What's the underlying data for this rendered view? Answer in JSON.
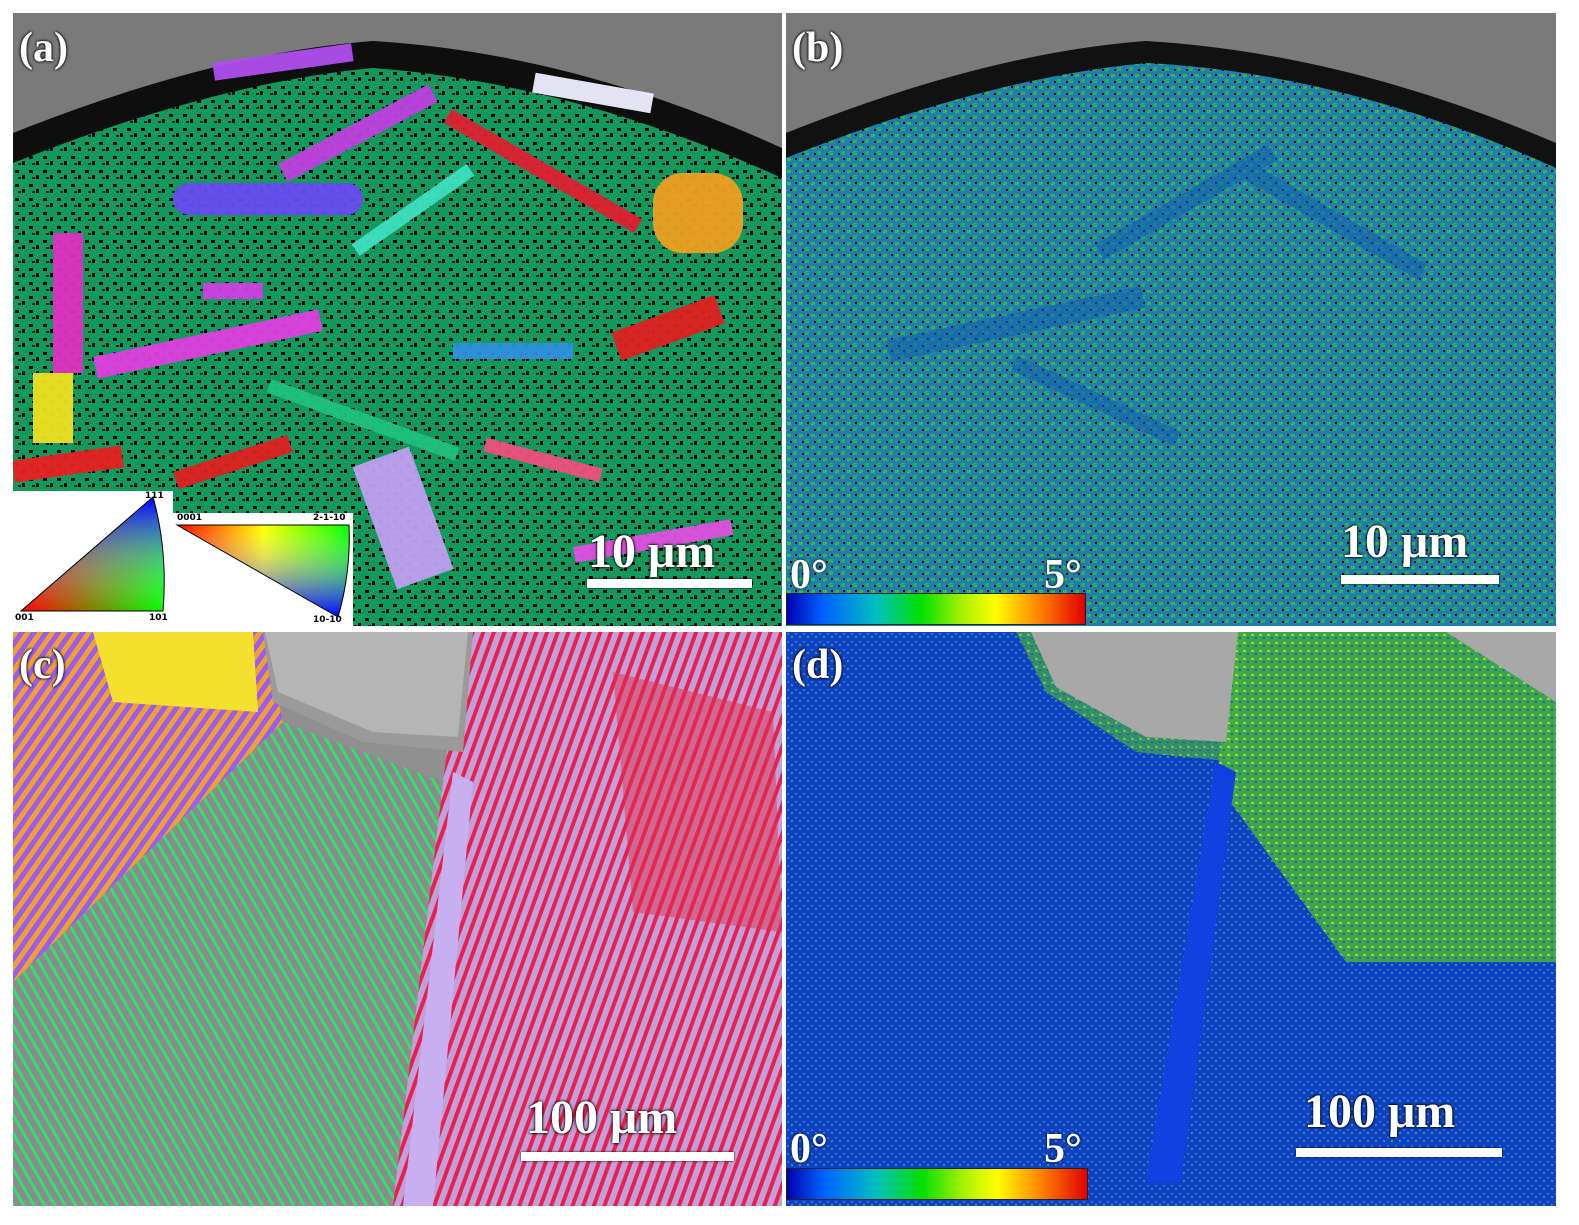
{
  "panels": {
    "a": {
      "label": "(a)",
      "scale_bar": "10 μm",
      "ipf_cubic": {
        "corner_001": "001",
        "corner_101": "101",
        "corner_111": "111"
      },
      "ipf_hex": {
        "corner_0001": "0001",
        "corner_2110": "2-1-10",
        "corner_1010": "10-10"
      }
    },
    "b": {
      "label": "(b)",
      "scale_bar": "10 μm",
      "colorbar_min": "0°",
      "colorbar_max": "5°"
    },
    "c": {
      "label": "(c)",
      "scale_bar": "100 μm"
    },
    "d": {
      "label": "(d)",
      "scale_bar": "100 μm",
      "colorbar_min": "0°",
      "colorbar_max": "5°"
    }
  },
  "colors": {
    "colorbar": [
      "#0000b0",
      "#00c0c0",
      "#00e000",
      "#ffff00",
      "#ff8000",
      "#e00000"
    ]
  }
}
